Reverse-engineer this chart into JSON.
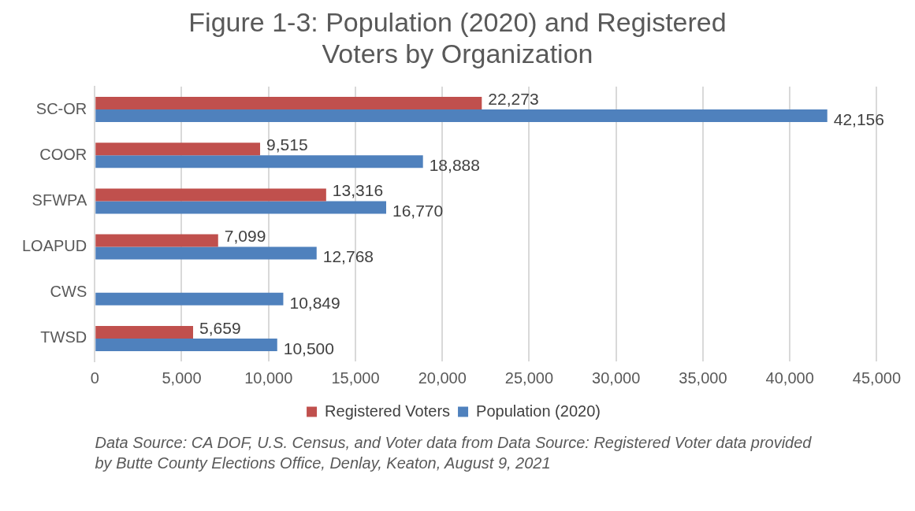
{
  "chart_data": {
    "type": "bar",
    "orientation": "horizontal",
    "title": "Figure 1-3: Population (2020) and Registered Voters by Organization",
    "categories": [
      "SC-OR",
      "COOR",
      "SFWPA",
      "LOAPUD",
      "CWS",
      "TWSD"
    ],
    "series": [
      {
        "name": "Registered Voters",
        "color": "#c0504d",
        "values": [
          22273,
          9515,
          13316,
          7099,
          null,
          5659
        ],
        "value_labels": [
          "22,273",
          "9,515",
          "13,316",
          "7,099",
          null,
          "5,659"
        ]
      },
      {
        "name": "Population (2020)",
        "color": "#4f81bd",
        "values": [
          42156,
          18888,
          16770,
          12768,
          10849,
          10500
        ],
        "value_labels": [
          "42,156",
          "18,888",
          "16,770",
          "12,768",
          "10,849",
          "10,500"
        ]
      }
    ],
    "xlim": [
      0,
      45000
    ],
    "xticks": [
      {
        "value": 0,
        "label": "0"
      },
      {
        "value": 5000,
        "label": "5,000"
      },
      {
        "value": 10000,
        "label": "10,000"
      },
      {
        "value": 15000,
        "label": "15,000"
      },
      {
        "value": 20000,
        "label": "20,000"
      },
      {
        "value": 25000,
        "label": "25,000"
      },
      {
        "value": 30000,
        "label": "30,000"
      },
      {
        "value": 35000,
        "label": "35,000"
      },
      {
        "value": 40000,
        "label": "40,000"
      },
      {
        "value": 45000,
        "label": "45,000"
      }
    ],
    "grid": "x",
    "legend": "bottom",
    "annotations": [
      "Data Source:  CA DOF, U.S. Census, and Voter data from Data Source:   Registered Voter data provided by Butte County Elections Office, Denlay, Keaton, August 9, 2021"
    ]
  }
}
